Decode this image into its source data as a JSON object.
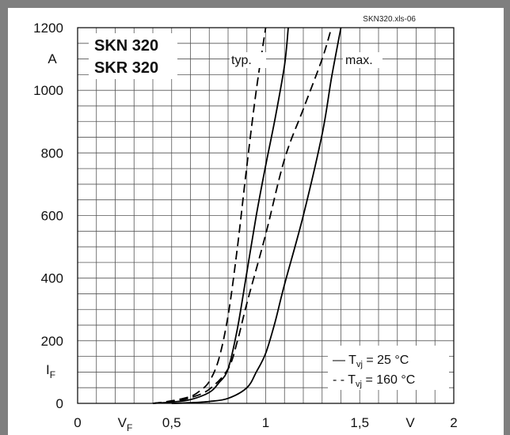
{
  "chart_data": {
    "type": "line",
    "source_tag": "SKN320.xls-06",
    "product_lines": [
      "SKN 320",
      "SKR 320"
    ],
    "xlabel": "V",
    "xlabel_symbol": "V",
    "xlabel_sub": "F",
    "ylabel": "A",
    "ylabel_symbol": "I",
    "ylabel_sub": "F",
    "xlim": [
      0,
      2
    ],
    "ylim": [
      0,
      1200
    ],
    "x_ticks": [
      {
        "value": 0,
        "label": "0"
      },
      {
        "value": 0.5,
        "label": "0,5"
      },
      {
        "value": 1,
        "label": "1"
      },
      {
        "value": 1.5,
        "label": "1,5"
      },
      {
        "value": 2,
        "label": "2"
      }
    ],
    "y_ticks": [
      {
        "value": 0,
        "label": "0"
      },
      {
        "value": 200,
        "label": "200"
      },
      {
        "value": 400,
        "label": "400"
      },
      {
        "value": 600,
        "label": "600"
      },
      {
        "value": 800,
        "label": "800"
      },
      {
        "value": 1000,
        "label": "1000"
      },
      {
        "value": 1200,
        "label": "1200"
      }
    ],
    "grid": true,
    "annotations": {
      "typ": "typ.",
      "max": "max."
    },
    "legend": {
      "position": "bottom-right",
      "entries": [
        {
          "marker": "—",
          "symbol": "T",
          "sub": "vj",
          "text": " =   25 °C",
          "style": "solid"
        },
        {
          "marker": "- -",
          "symbol": "T",
          "sub": "vj",
          "text": " = 160 °C",
          "style": "dashed"
        }
      ]
    },
    "series": [
      {
        "group": "typ.",
        "style": "dashed",
        "condition": "160 °C",
        "x": [
          0.4,
          0.5,
          0.6,
          0.65,
          0.7,
          0.75,
          0.8,
          0.85,
          0.9,
          0.95,
          1.0
        ],
        "y": [
          0,
          8,
          22,
          40,
          70,
          140,
          280,
          500,
          760,
          1000,
          1200
        ]
      },
      {
        "group": "typ.",
        "style": "solid",
        "condition": "25 °C",
        "x": [
          0.4,
          0.5,
          0.6,
          0.7,
          0.75,
          0.8,
          0.85,
          0.9,
          0.95,
          1.0,
          1.05,
          1.1,
          1.12
        ],
        "y": [
          0,
          4,
          12,
          35,
          65,
          110,
          240,
          420,
          600,
          760,
          910,
          1080,
          1200
        ]
      },
      {
        "group": "max.",
        "style": "dashed",
        "condition": "160 °C",
        "x": [
          0.4,
          0.5,
          0.6,
          0.7,
          0.8,
          0.85,
          0.9,
          1.0,
          1.1,
          1.2,
          1.3,
          1.35
        ],
        "y": [
          0,
          6,
          18,
          45,
          110,
          200,
          320,
          540,
          780,
          940,
          1100,
          1200
        ]
      },
      {
        "group": "max.",
        "style": "solid",
        "condition": "25 °C",
        "x": [
          0.5,
          0.6,
          0.7,
          0.8,
          0.9,
          0.95,
          1.0,
          1.05,
          1.1,
          1.2,
          1.3,
          1.35,
          1.4
        ],
        "y": [
          0,
          2,
          6,
          16,
          50,
          100,
          160,
          260,
          380,
          600,
          860,
          1040,
          1200
        ]
      }
    ]
  }
}
